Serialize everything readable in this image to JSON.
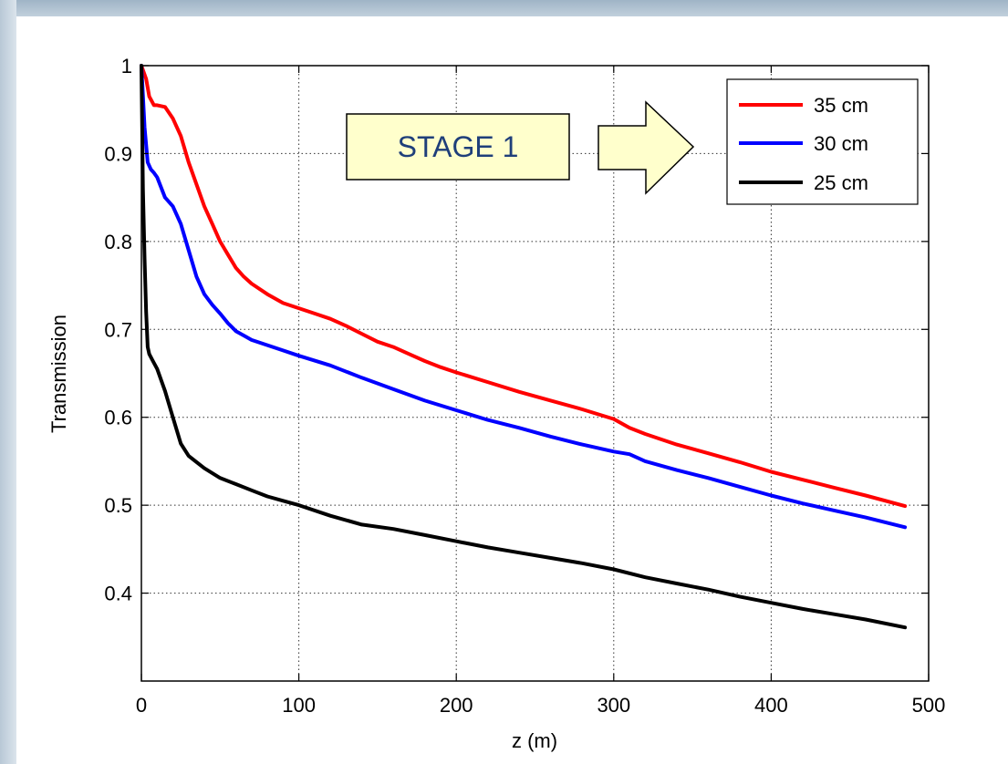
{
  "chart_data": {
    "type": "line",
    "title": "",
    "xlabel": "z (m)",
    "ylabel": "Transmission",
    "xlim": [
      0,
      500
    ],
    "ylim": [
      0.3,
      1.0
    ],
    "xticks": [
      0,
      100,
      200,
      300,
      400,
      500
    ],
    "yticks": [
      0.4,
      0.5,
      0.6,
      0.7,
      0.8,
      0.9,
      1.0
    ],
    "xtick_labels": [
      "0",
      "100",
      "200",
      "300",
      "400",
      "500"
    ],
    "ytick_labels": [
      "0.4",
      "0.5",
      "0.6",
      "0.7",
      "0.8",
      "0.9",
      "1"
    ],
    "grid": true,
    "legend_position": "top-right",
    "series": [
      {
        "name": "35 cm",
        "color": "#ff0000",
        "x": [
          0,
          3,
          5,
          8,
          10,
          15,
          20,
          25,
          30,
          35,
          40,
          45,
          50,
          55,
          60,
          65,
          70,
          80,
          90,
          100,
          110,
          120,
          130,
          140,
          150,
          160,
          170,
          180,
          190,
          200,
          220,
          240,
          260,
          280,
          300,
          310,
          320,
          340,
          360,
          380,
          400,
          420,
          440,
          460,
          485
        ],
        "y": [
          1.0,
          0.985,
          0.965,
          0.955,
          0.955,
          0.953,
          0.94,
          0.92,
          0.89,
          0.865,
          0.84,
          0.82,
          0.8,
          0.785,
          0.77,
          0.76,
          0.752,
          0.74,
          0.73,
          0.724,
          0.718,
          0.712,
          0.704,
          0.695,
          0.686,
          0.68,
          0.672,
          0.664,
          0.657,
          0.651,
          0.64,
          0.629,
          0.619,
          0.609,
          0.598,
          0.588,
          0.581,
          0.569,
          0.559,
          0.549,
          0.538,
          0.529,
          0.52,
          0.511,
          0.499
        ]
      },
      {
        "name": "30 cm",
        "color": "#0000ff",
        "x": [
          0,
          2,
          4,
          6,
          8,
          10,
          15,
          20,
          25,
          30,
          35,
          40,
          45,
          50,
          55,
          60,
          65,
          70,
          80,
          90,
          100,
          120,
          140,
          160,
          180,
          200,
          220,
          240,
          260,
          280,
          300,
          310,
          320,
          340,
          360,
          380,
          400,
          420,
          440,
          460,
          485
        ],
        "y": [
          1.0,
          0.93,
          0.89,
          0.882,
          0.878,
          0.873,
          0.85,
          0.84,
          0.82,
          0.79,
          0.76,
          0.74,
          0.728,
          0.718,
          0.707,
          0.698,
          0.693,
          0.688,
          0.682,
          0.676,
          0.67,
          0.659,
          0.645,
          0.632,
          0.619,
          0.608,
          0.597,
          0.588,
          0.578,
          0.569,
          0.561,
          0.558,
          0.55,
          0.54,
          0.531,
          0.521,
          0.511,
          0.502,
          0.494,
          0.486,
          0.475
        ]
      },
      {
        "name": "25 cm",
        "color": "#000000",
        "x": [
          0,
          1,
          2,
          3,
          4,
          5,
          7,
          10,
          15,
          20,
          25,
          30,
          40,
          50,
          60,
          70,
          80,
          90,
          100,
          120,
          140,
          160,
          180,
          200,
          220,
          240,
          260,
          280,
          300,
          320,
          340,
          360,
          380,
          400,
          420,
          440,
          460,
          485
        ],
        "y": [
          1.0,
          0.86,
          0.78,
          0.72,
          0.68,
          0.672,
          0.665,
          0.655,
          0.63,
          0.6,
          0.57,
          0.556,
          0.542,
          0.531,
          0.524,
          0.517,
          0.51,
          0.505,
          0.5,
          0.488,
          0.478,
          0.473,
          0.466,
          0.459,
          0.452,
          0.446,
          0.44,
          0.434,
          0.427,
          0.418,
          0.411,
          0.404,
          0.396,
          0.389,
          0.382,
          0.376,
          0.37,
          0.361
        ]
      }
    ]
  },
  "annotation": {
    "label": "STAGE 1",
    "box_fill": "#ffffcc",
    "text_color": "#1f3f7a"
  },
  "colors": {
    "axis": "#000000",
    "grid": "#333333",
    "background": "#ffffff"
  }
}
